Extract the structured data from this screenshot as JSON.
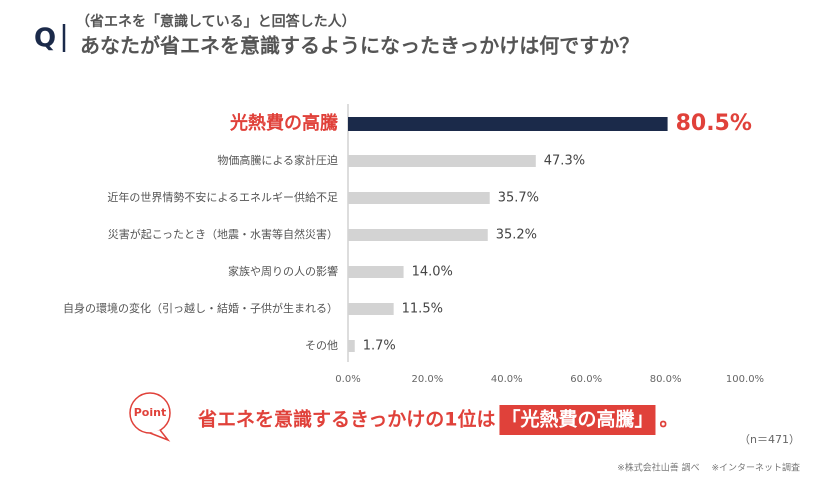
{
  "header": {
    "marker": "Q"
  },
  "chart_data": {
    "type": "bar",
    "orientation": "horizontal",
    "subtitle": "（省エネを「意識している」と回答した人）",
    "title": "あなたが省エネを意識するようになったきっかけは何ですか？",
    "categories": [
      "光熱費の高騰",
      "物価高騰による家計圧迫",
      "近年の世界情勢不安によるエネルギー供給不足",
      "災害が起こったとき（地震・水害等自然災害）",
      "家族や周りの人の影響",
      "自身の環境の変化（引っ越し・結婚・子供が生まれる）",
      "その他"
    ],
    "values": [
      80.5,
      47.3,
      35.7,
      35.2,
      14.0,
      11.5,
      1.7
    ],
    "value_labels": [
      "80.5%",
      "47.3%",
      "35.7%",
      "35.2%",
      "14.0%",
      "11.5%",
      "1.7%"
    ],
    "color": "#d3d3d3",
    "highlight_color": "#1b2a4a",
    "colors": [
      "#1b2a4a",
      "#d3d3d3",
      "#d3d3d3",
      "#d3d3d3",
      "#d3d3d3",
      "#d3d3d3",
      "#d3d3d3"
    ],
    "xlim": [
      0,
      100
    ],
    "xticks": [
      {
        "value": 0,
        "label": "0.0%"
      },
      {
        "value": 20,
        "label": "20.0%"
      },
      {
        "value": 40,
        "label": "40.0%"
      },
      {
        "value": 60,
        "label": "60.0%"
      },
      {
        "value": 80,
        "label": "80.0%"
      },
      {
        "value": 100,
        "label": "100.0%"
      }
    ]
  },
  "point": {
    "label": "Point",
    "text": "省エネを意識するきっかけの1位は",
    "highlight": "「光熱費の高騰」",
    "end": "。"
  },
  "note": "（n＝471）",
  "source": "※株式会社山善 調べ　 ※インターネット調査"
}
